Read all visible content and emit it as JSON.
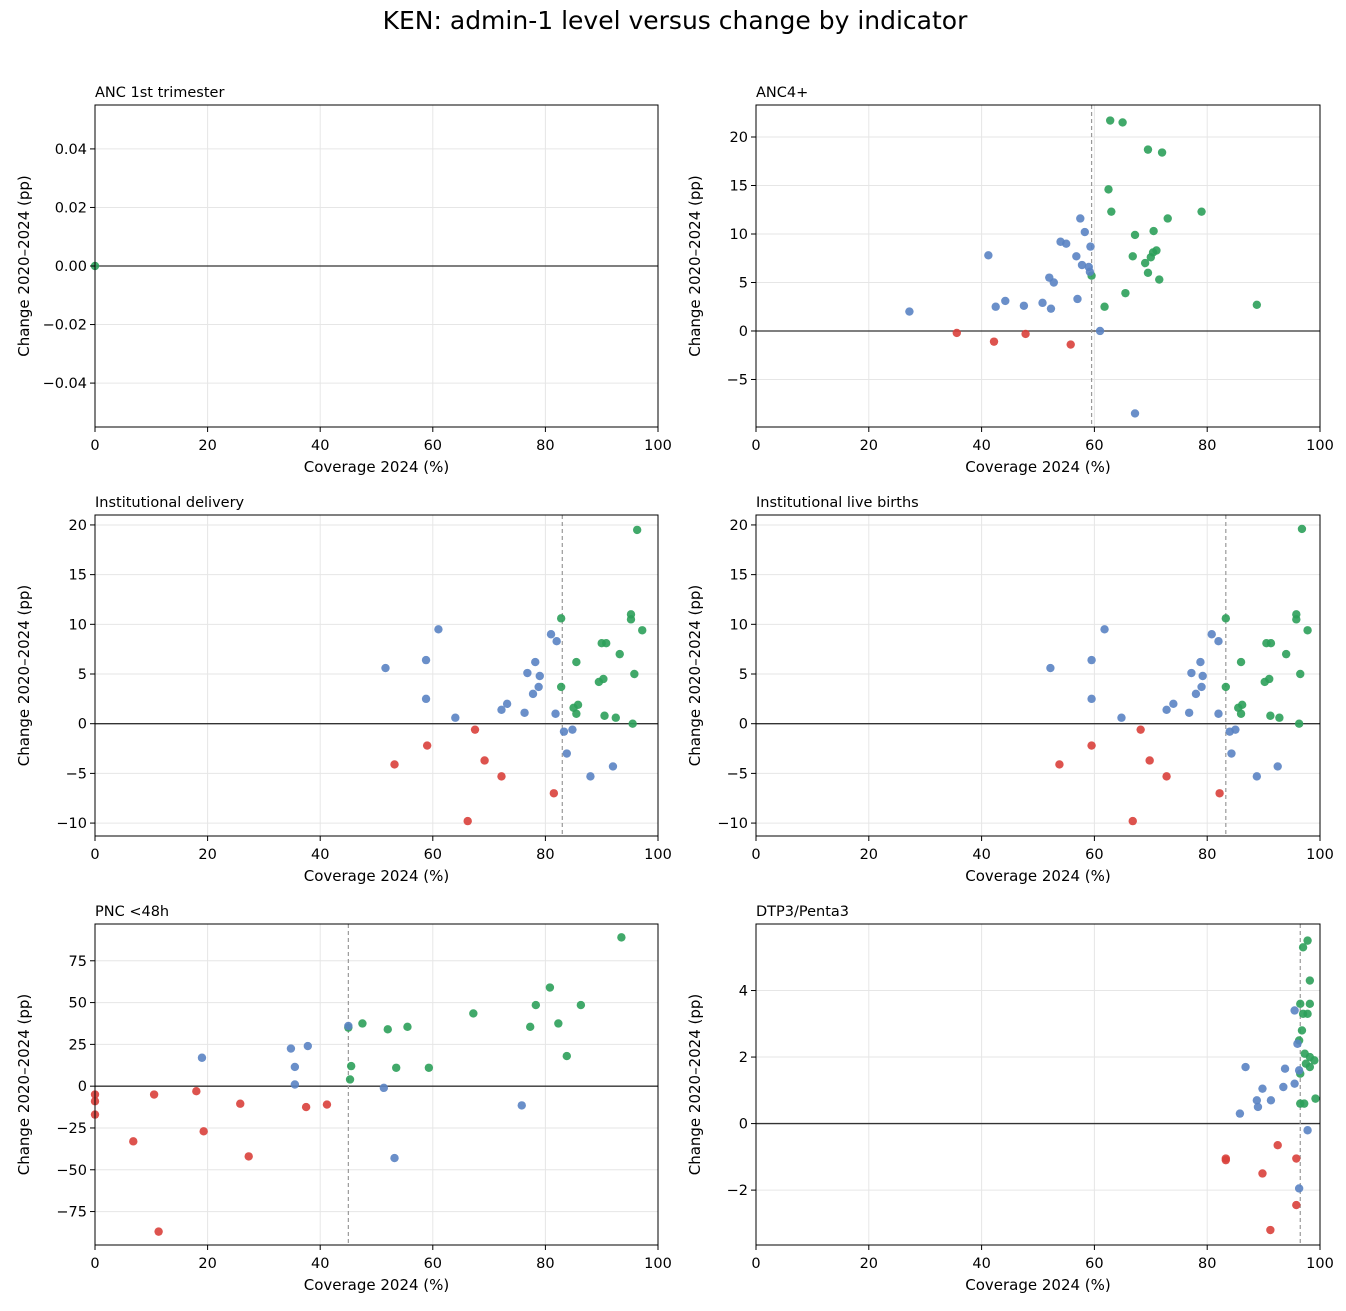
{
  "figure": {
    "title": "KEN: admin-1 level versus change by indicator"
  },
  "colors": {
    "positive": "#2ca05a",
    "neutral": "#5a83c3",
    "negative": "#d9403b",
    "zero_line": "#333333",
    "median_line": "#999999",
    "grid": "#e6e6e6"
  },
  "chart_data": [
    {
      "type": "scatter",
      "title": "ANC 1st trimester",
      "xlabel": "Coverage 2024 (%)",
      "ylabel": "Change 2020–2024 (pp)",
      "xlim": [
        0,
        100
      ],
      "ylim": [
        -0.055,
        0.055
      ],
      "xticks": [
        0,
        20,
        40,
        60,
        80,
        100
      ],
      "yticks": [
        -0.04,
        -0.02,
        0.0,
        0.02,
        0.04
      ],
      "ytick_labels": [
        "−0.04",
        "−0.02",
        "0.00",
        "0.02",
        "0.04"
      ],
      "vline": null,
      "grid": true,
      "series": [
        {
          "color": "green",
          "points": [
            [
              0,
              0
            ]
          ]
        }
      ]
    },
    {
      "type": "scatter",
      "title": "ANC4+",
      "xlabel": "Coverage 2024 (%)",
      "ylabel": "Change 2020–2024 (pp)",
      "xlim": [
        0,
        100
      ],
      "ylim": [
        -9.9,
        23.3
      ],
      "xticks": [
        0,
        20,
        40,
        60,
        80,
        100
      ],
      "yticks": [
        -5,
        0,
        5,
        10,
        15,
        20
      ],
      "ytick_labels": [
        "−5",
        "0",
        "5",
        "10",
        "15",
        "20"
      ],
      "vline": 59.5,
      "grid": true,
      "series": [
        {
          "color": "green",
          "points": [
            [
              62.8,
              21.7
            ],
            [
              65,
              21.5
            ],
            [
              69.5,
              18.7
            ],
            [
              72,
              18.4
            ],
            [
              62.5,
              14.6
            ],
            [
              63,
              12.3
            ],
            [
              79,
              12.3
            ],
            [
              73,
              11.6
            ],
            [
              70.5,
              10.3
            ],
            [
              67.2,
              9.9
            ],
            [
              71,
              8.3
            ],
            [
              70.4,
              8.1
            ],
            [
              66.8,
              7.7
            ],
            [
              70.0,
              7.6
            ],
            [
              69.0,
              7.0
            ],
            [
              69.5,
              6.0
            ],
            [
              59.5,
              5.7
            ],
            [
              71.5,
              5.3
            ],
            [
              65.5,
              3.9
            ],
            [
              88.8,
              2.7
            ],
            [
              61.8,
              2.5
            ]
          ]
        },
        {
          "color": "blue",
          "points": [
            [
              57.5,
              11.6
            ],
            [
              58.3,
              10.2
            ],
            [
              54,
              9.2
            ],
            [
              55,
              9.0
            ],
            [
              59.3,
              8.7
            ],
            [
              41.2,
              7.8
            ],
            [
              56.8,
              7.7
            ],
            [
              57.8,
              6.8
            ],
            [
              59,
              6.6
            ],
            [
              59.2,
              6.1
            ],
            [
              52,
              5.5
            ],
            [
              52.8,
              5.0
            ],
            [
              44.2,
              3.1
            ],
            [
              57,
              3.3
            ],
            [
              50.8,
              2.9
            ],
            [
              42.5,
              2.5
            ],
            [
              47.5,
              2.6
            ],
            [
              52.3,
              2.3
            ],
            [
              27.2,
              2.0
            ],
            [
              61,
              0.0
            ],
            [
              67.2,
              -8.5
            ]
          ]
        },
        {
          "color": "red",
          "points": [
            [
              35.6,
              -0.2
            ],
            [
              47.8,
              -0.3
            ],
            [
              42.2,
              -1.1
            ],
            [
              55.8,
              -1.4
            ]
          ]
        }
      ]
    },
    {
      "type": "scatter",
      "title": "Institutional delivery",
      "xlabel": "Coverage 2024 (%)",
      "ylabel": "Change 2020–2024 (pp)",
      "xlim": [
        0,
        100
      ],
      "ylim": [
        -11.3,
        21
      ],
      "xticks": [
        0,
        20,
        40,
        60,
        80,
        100
      ],
      "yticks": [
        -10,
        -5,
        0,
        5,
        10,
        15,
        20
      ],
      "ytick_labels": [
        "−10",
        "−5",
        "0",
        "5",
        "10",
        "15",
        "20"
      ],
      "vline": 83,
      "grid": true,
      "series": [
        {
          "color": "green",
          "points": [
            [
              96.3,
              19.5
            ],
            [
              95.2,
              11
            ],
            [
              95.2,
              10.5
            ],
            [
              82.8,
              10.6
            ],
            [
              97.2,
              9.4
            ],
            [
              90.0,
              8.1
            ],
            [
              90.8,
              8.1
            ],
            [
              93.2,
              7.0
            ],
            [
              85.5,
              6.2
            ],
            [
              95.8,
              5.0
            ],
            [
              90.3,
              4.5
            ],
            [
              89.5,
              4.2
            ],
            [
              82.8,
              3.7
            ],
            [
              85.8,
              1.9
            ],
            [
              85,
              1.6
            ],
            [
              85.5,
              1.0
            ],
            [
              90.5,
              0.8
            ],
            [
              92.5,
              0.6
            ],
            [
              95.5,
              0.0
            ]
          ]
        },
        {
          "color": "blue",
          "points": [
            [
              61,
              9.5
            ],
            [
              81,
              9.0
            ],
            [
              82,
              8.3
            ],
            [
              58.8,
              6.4
            ],
            [
              78.2,
              6.2
            ],
            [
              51.6,
              5.6
            ],
            [
              76.8,
              5.1
            ],
            [
              79,
              4.8
            ],
            [
              78.8,
              3.7
            ],
            [
              77.8,
              3.0
            ],
            [
              58.8,
              2.5
            ],
            [
              73.2,
              2.0
            ],
            [
              72.2,
              1.4
            ],
            [
              76.3,
              1.1
            ],
            [
              81.8,
              1.0
            ],
            [
              64,
              0.6
            ],
            [
              84.8,
              -0.6
            ],
            [
              83.3,
              -0.8
            ],
            [
              83.8,
              -3.0
            ],
            [
              92,
              -4.3
            ],
            [
              88,
              -5.3
            ]
          ]
        },
        {
          "color": "red",
          "points": [
            [
              67.5,
              -0.6
            ],
            [
              59,
              -2.2
            ],
            [
              69.2,
              -3.7
            ],
            [
              53.2,
              -4.1
            ],
            [
              72.2,
              -5.3
            ],
            [
              81.5,
              -7.0
            ],
            [
              66.2,
              -9.8
            ]
          ]
        }
      ]
    },
    {
      "type": "scatter",
      "title": "Institutional live births",
      "xlabel": "Coverage 2024 (%)",
      "ylabel": "Change 2020–2024 (pp)",
      "xlim": [
        0,
        100
      ],
      "ylim": [
        -11.3,
        21
      ],
      "xticks": [
        0,
        20,
        40,
        60,
        80,
        100
      ],
      "yticks": [
        -10,
        -5,
        0,
        5,
        10,
        15,
        20
      ],
      "ytick_labels": [
        "−10",
        "−5",
        "0",
        "5",
        "10",
        "15",
        "20"
      ],
      "vline": 83.3,
      "grid": true,
      "series": [
        {
          "color": "green",
          "points": [
            [
              96.8,
              19.6
            ],
            [
              95.8,
              11
            ],
            [
              95.8,
              10.5
            ],
            [
              83.3,
              10.6
            ],
            [
              97.8,
              9.4
            ],
            [
              90.5,
              8.1
            ],
            [
              91.3,
              8.1
            ],
            [
              94,
              7.0
            ],
            [
              86,
              6.2
            ],
            [
              96.5,
              5.0
            ],
            [
              91,
              4.5
            ],
            [
              90.2,
              4.2
            ],
            [
              83.3,
              3.7
            ],
            [
              86.2,
              1.9
            ],
            [
              85.5,
              1.6
            ],
            [
              86,
              1.0
            ],
            [
              91.2,
              0.8
            ],
            [
              92.8,
              0.6
            ],
            [
              96.3,
              0.0
            ]
          ]
        },
        {
          "color": "blue",
          "points": [
            [
              61.8,
              9.5
            ],
            [
              80.8,
              9.0
            ],
            [
              82,
              8.3
            ],
            [
              59.5,
              6.4
            ],
            [
              78.8,
              6.2
            ],
            [
              52.2,
              5.6
            ],
            [
              77.2,
              5.1
            ],
            [
              79.2,
              4.8
            ],
            [
              79,
              3.7
            ],
            [
              78,
              3.0
            ],
            [
              59.5,
              2.5
            ],
            [
              74,
              2.0
            ],
            [
              72.8,
              1.4
            ],
            [
              76.8,
              1.1
            ],
            [
              82,
              1.0
            ],
            [
              64.8,
              0.6
            ],
            [
              85,
              -0.6
            ],
            [
              84,
              -0.8
            ],
            [
              84.3,
              -3.0
            ],
            [
              92.5,
              -4.3
            ],
            [
              88.8,
              -5.3
            ]
          ]
        },
        {
          "color": "red",
          "points": [
            [
              68.2,
              -0.6
            ],
            [
              59.5,
              -2.2
            ],
            [
              69.8,
              -3.7
            ],
            [
              53.8,
              -4.1
            ],
            [
              72.8,
              -5.3
            ],
            [
              82.2,
              -7.0
            ],
            [
              66.8,
              -9.8
            ]
          ]
        }
      ]
    },
    {
      "type": "scatter",
      "title": "PNC <48h",
      "xlabel": "Coverage 2024 (%)",
      "ylabel": "Change 2020–2024 (pp)",
      "xlim": [
        0,
        100
      ],
      "ylim": [
        -95,
        97
      ],
      "xticks": [
        0,
        20,
        40,
        60,
        80,
        100
      ],
      "yticks": [
        -75,
        -50,
        -25,
        0,
        25,
        50,
        75
      ],
      "ytick_labels": [
        "−75",
        "−50",
        "−25",
        "0",
        "25",
        "50",
        "75"
      ],
      "vline": 45,
      "grid": true,
      "series": [
        {
          "color": "green",
          "points": [
            [
              93.5,
              89
            ],
            [
              80.8,
              59
            ],
            [
              78.3,
              48.5
            ],
            [
              86.3,
              48.5
            ],
            [
              67.2,
              43.5
            ],
            [
              47.5,
              37.5
            ],
            [
              82.3,
              37.5
            ],
            [
              55.5,
              35.5
            ],
            [
              77.3,
              35.5
            ],
            [
              52,
              34
            ],
            [
              45,
              35
            ],
            [
              45.5,
              12
            ],
            [
              53.5,
              11
            ],
            [
              59.3,
              11
            ],
            [
              83.8,
              18
            ],
            [
              45.3,
              4
            ]
          ]
        },
        {
          "color": "blue",
          "points": [
            [
              19,
              17
            ],
            [
              34.8,
              22.5
            ],
            [
              37.8,
              24
            ],
            [
              45,
              36
            ],
            [
              35.5,
              11.5
            ],
            [
              35.5,
              1
            ],
            [
              51.3,
              -1
            ],
            [
              75.8,
              -11.5
            ],
            [
              53.2,
              -43
            ]
          ]
        },
        {
          "color": "red",
          "points": [
            [
              0,
              -5
            ],
            [
              0,
              -9
            ],
            [
              0,
              -17
            ],
            [
              10.5,
              -5
            ],
            [
              18,
              -3
            ],
            [
              25.8,
              -10.5
            ],
            [
              37.5,
              -12.5
            ],
            [
              41.2,
              -11
            ],
            [
              19.3,
              -27
            ],
            [
              6.8,
              -33
            ],
            [
              27.3,
              -42
            ],
            [
              11.3,
              -87
            ]
          ]
        }
      ]
    },
    {
      "type": "scatter",
      "title": "DTP3/Penta3",
      "xlabel": "Coverage 2024 (%)",
      "ylabel": "Change 2020–2024 (pp)",
      "xlim": [
        0,
        100
      ],
      "ylim": [
        -3.65,
        6.0
      ],
      "xticks": [
        0,
        20,
        40,
        60,
        80,
        100
      ],
      "yticks": [
        -2,
        0,
        2,
        4
      ],
      "ytick_labels": [
        "−2",
        "0",
        "2",
        "4"
      ],
      "vline": 96.5,
      "grid": true,
      "series": [
        {
          "color": "green",
          "points": [
            [
              97.8,
              5.5
            ],
            [
              97.0,
              5.3
            ],
            [
              98.2,
              4.3
            ],
            [
              96.5,
              3.6
            ],
            [
              98.2,
              3.6
            ],
            [
              97,
              3.3
            ],
            [
              97.8,
              3.3
            ],
            [
              96.8,
              2.8
            ],
            [
              96.3,
              2.5
            ],
            [
              97.3,
              2.1
            ],
            [
              98.2,
              2.0
            ],
            [
              99,
              1.9
            ],
            [
              97.5,
              1.8
            ],
            [
              98.2,
              1.7
            ],
            [
              96.5,
              1.5
            ],
            [
              96.5,
              0.6
            ],
            [
              97.2,
              0.6
            ],
            [
              99.2,
              0.75
            ]
          ]
        },
        {
          "color": "blue",
          "points": [
            [
              95.5,
              3.4
            ],
            [
              96,
              2.4
            ],
            [
              86.8,
              1.7
            ],
            [
              93.8,
              1.65
            ],
            [
              96.3,
              1.6
            ],
            [
              95.5,
              1.2
            ],
            [
              93.5,
              1.1
            ],
            [
              89.8,
              1.05
            ],
            [
              88.8,
              0.7
            ],
            [
              91.3,
              0.7
            ],
            [
              89,
              0.5
            ],
            [
              85.8,
              0.3
            ],
            [
              97.8,
              -0.2
            ],
            [
              96.3,
              -1.95
            ]
          ]
        },
        {
          "color": "red",
          "points": [
            [
              92.5,
              -0.65
            ],
            [
              83.3,
              -1.05
            ],
            [
              83.3,
              -1.1
            ],
            [
              95.8,
              -1.05
            ],
            [
              89.8,
              -1.5
            ],
            [
              95.8,
              -2.45
            ],
            [
              91.2,
              -3.2
            ]
          ]
        }
      ]
    }
  ]
}
